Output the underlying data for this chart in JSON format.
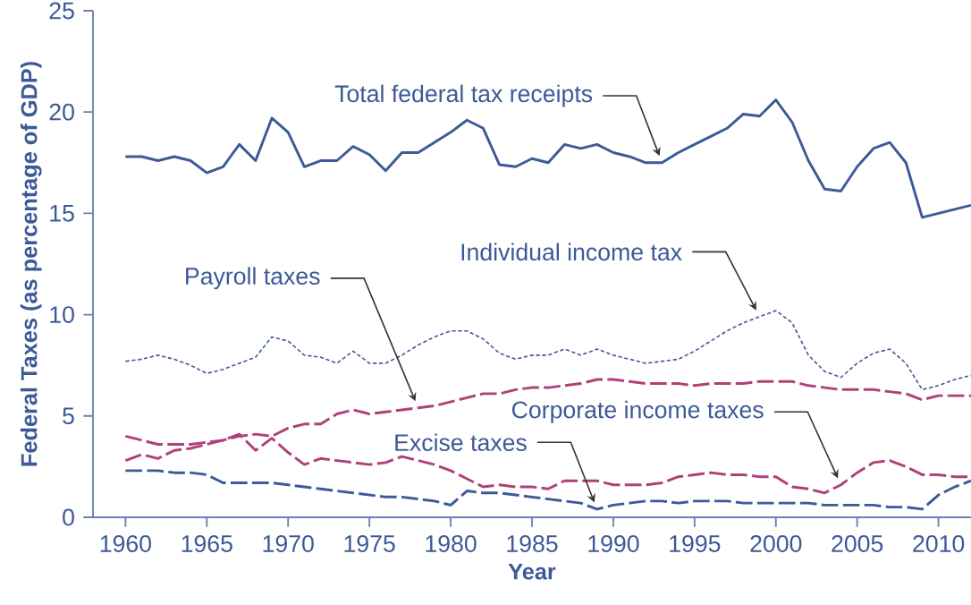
{
  "chart_data": {
    "type": "line",
    "xlabel": "Year",
    "ylabel": "Federal Taxes (as percentage of GDP)",
    "x": [
      1960,
      1961,
      1962,
      1963,
      1964,
      1965,
      1966,
      1967,
      1968,
      1969,
      1970,
      1971,
      1972,
      1973,
      1974,
      1975,
      1976,
      1977,
      1978,
      1979,
      1980,
      1981,
      1982,
      1983,
      1984,
      1985,
      1986,
      1987,
      1988,
      1989,
      1990,
      1991,
      1992,
      1993,
      1994,
      1995,
      1996,
      1997,
      1998,
      1999,
      2000,
      2001,
      2002,
      2003,
      2004,
      2005,
      2006,
      2007,
      2008,
      2009,
      2010,
      2011,
      2012
    ],
    "series": [
      {
        "name": "Total federal tax receipts",
        "color": "#3d5a98",
        "line_style": "solid",
        "values": [
          17.8,
          17.8,
          17.6,
          17.8,
          17.6,
          17.0,
          17.3,
          18.4,
          17.6,
          19.7,
          19.0,
          17.3,
          17.6,
          17.6,
          18.3,
          17.9,
          17.1,
          18.0,
          18.0,
          18.5,
          19.0,
          19.6,
          19.2,
          17.4,
          17.3,
          17.7,
          17.5,
          18.4,
          18.2,
          18.4,
          18.0,
          17.8,
          17.5,
          17.5,
          18.0,
          18.4,
          18.8,
          19.2,
          19.9,
          19.8,
          20.6,
          19.5,
          17.6,
          16.2,
          16.1,
          17.3,
          18.2,
          18.5,
          17.5,
          14.8,
          15.0,
          15.2,
          15.4
        ]
      },
      {
        "name": "Individual income tax",
        "color": "#3d5a98",
        "line_style": "dotted",
        "values": [
          7.7,
          7.8,
          8.0,
          7.8,
          7.5,
          7.1,
          7.3,
          7.6,
          7.9,
          8.9,
          8.7,
          8.0,
          7.9,
          7.6,
          8.2,
          7.6,
          7.6,
          8.0,
          8.5,
          8.9,
          9.2,
          9.2,
          8.8,
          8.1,
          7.8,
          8.0,
          8.0,
          8.3,
          8.0,
          8.3,
          8.0,
          7.8,
          7.6,
          7.7,
          7.8,
          8.2,
          8.7,
          9.2,
          9.6,
          9.9,
          10.2,
          9.6,
          8.0,
          7.2,
          6.9,
          7.6,
          8.1,
          8.3,
          7.6,
          6.3,
          6.5,
          6.8,
          7.0
        ]
      },
      {
        "name": "Payroll taxes",
        "color": "#b0407a",
        "line_style": "dashed",
        "values": [
          4.0,
          3.8,
          3.6,
          3.6,
          3.6,
          3.7,
          3.8,
          4.0,
          4.1,
          4.0,
          4.4,
          4.6,
          4.6,
          5.1,
          5.3,
          5.1,
          5.2,
          5.3,
          5.4,
          5.5,
          5.7,
          5.9,
          6.1,
          6.1,
          6.3,
          6.4,
          6.4,
          6.5,
          6.6,
          6.8,
          6.8,
          6.7,
          6.6,
          6.6,
          6.6,
          6.5,
          6.6,
          6.6,
          6.6,
          6.7,
          6.7,
          6.7,
          6.5,
          6.4,
          6.3,
          6.3,
          6.3,
          6.2,
          6.1,
          5.8,
          6.0,
          6.0,
          6.0
        ]
      },
      {
        "name": "Corporate income taxes",
        "color": "#b0407a",
        "line_style": "dashed",
        "values": [
          2.8,
          3.1,
          2.9,
          3.3,
          3.4,
          3.6,
          3.8,
          4.1,
          3.3,
          3.9,
          3.2,
          2.6,
          2.9,
          2.8,
          2.7,
          2.6,
          2.7,
          3.0,
          2.8,
          2.6,
          2.3,
          1.9,
          1.5,
          1.6,
          1.5,
          1.5,
          1.4,
          1.8,
          1.8,
          1.8,
          1.6,
          1.6,
          1.6,
          1.7,
          2.0,
          2.1,
          2.2,
          2.1,
          2.1,
          2.0,
          2.0,
          1.5,
          1.4,
          1.2,
          1.6,
          2.2,
          2.7,
          2.8,
          2.5,
          2.1,
          2.1,
          2.0,
          2.0
        ]
      },
      {
        "name": "Excise taxes",
        "color": "#3d5a98",
        "line_style": "dashed",
        "values": [
          2.3,
          2.3,
          2.3,
          2.2,
          2.2,
          2.1,
          1.7,
          1.7,
          1.7,
          1.7,
          1.6,
          1.5,
          1.4,
          1.3,
          1.2,
          1.1,
          1.0,
          1.0,
          0.9,
          0.8,
          0.6,
          1.3,
          1.2,
          1.2,
          1.1,
          1.0,
          0.9,
          0.8,
          0.7,
          0.4,
          0.6,
          0.7,
          0.8,
          0.8,
          0.7,
          0.8,
          0.8,
          0.8,
          0.7,
          0.7,
          0.7,
          0.7,
          0.7,
          0.6,
          0.6,
          0.6,
          0.6,
          0.5,
          0.5,
          0.4,
          1.1,
          1.5,
          1.8
        ]
      }
    ],
    "xlim": [
      1958,
      2012
    ],
    "ylim": [
      0,
      25
    ],
    "xticks": [
      1960,
      1965,
      1970,
      1975,
      1980,
      1985,
      1990,
      1995,
      2000,
      2005,
      2010
    ],
    "yticks": [
      0,
      5,
      10,
      15,
      20,
      25
    ],
    "grid": false,
    "legend": false,
    "marker": "none"
  }
}
